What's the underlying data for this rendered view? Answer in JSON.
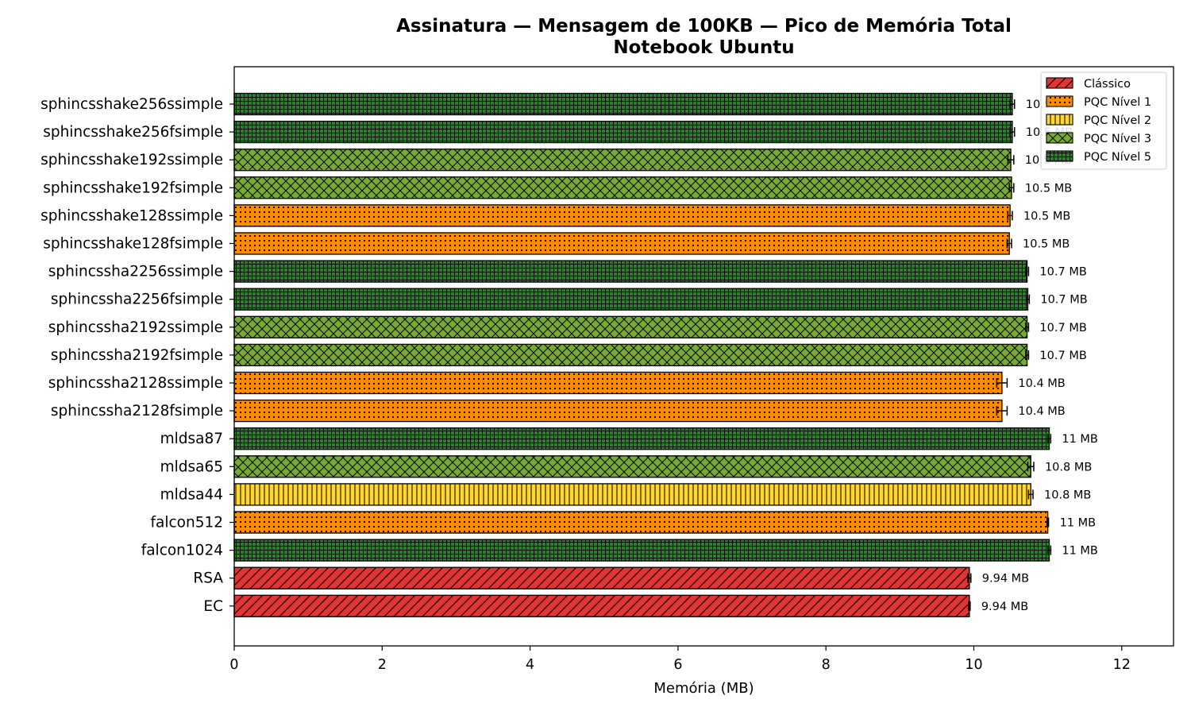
{
  "chart_data": {
    "type": "bar",
    "orientation": "horizontal",
    "title": "Assinatura — Mensagem de 100KB — Pico de Memória Total",
    "subtitle": "Notebook Ubuntu",
    "xlabel": "Memória (MB)",
    "ylabel": "",
    "xlim": [
      0,
      12.7
    ],
    "xticks": [
      0,
      2,
      4,
      6,
      8,
      10,
      12
    ],
    "grid": false,
    "legend_position": "top-right",
    "legend": [
      {
        "key": "classico",
        "label": "Clássico",
        "color": "#e03535",
        "hatch": "diagonal"
      },
      {
        "key": "pqc1",
        "label": "PQC Nível 1",
        "color": "#ff8c00",
        "hatch": "dots"
      },
      {
        "key": "pqc2",
        "label": "PQC Nível 2",
        "color": "#ffd633",
        "hatch": "vertical"
      },
      {
        "key": "pqc3",
        "label": "PQC Nível 3",
        "color": "#77aa33",
        "hatch": "cross"
      },
      {
        "key": "pqc5",
        "label": "PQC Nível 5",
        "color": "#2e7d2e",
        "hatch": "grid"
      }
    ],
    "bars": [
      {
        "name": "sphincsshake256ssimple",
        "value": 10.52,
        "err": 0.03,
        "label": "10.5 MB",
        "group": "pqc5"
      },
      {
        "name": "sphincsshake256fsimple",
        "value": 10.52,
        "err": 0.03,
        "label": "10.5 MB",
        "group": "pqc5"
      },
      {
        "name": "sphincsshake192ssimple",
        "value": 10.5,
        "err": 0.04,
        "label": "10.5 MB",
        "group": "pqc3"
      },
      {
        "name": "sphincsshake192fsimple",
        "value": 10.51,
        "err": 0.03,
        "label": "10.5 MB",
        "group": "pqc3"
      },
      {
        "name": "sphincsshake128ssimple",
        "value": 10.49,
        "err": 0.03,
        "label": "10.5 MB",
        "group": "pqc1"
      },
      {
        "name": "sphincsshake128fsimple",
        "value": 10.48,
        "err": 0.03,
        "label": "10.5 MB",
        "group": "pqc1"
      },
      {
        "name": "sphincssha2256ssimple",
        "value": 10.72,
        "err": 0.02,
        "label": "10.7 MB",
        "group": "pqc5"
      },
      {
        "name": "sphincssha2256fsimple",
        "value": 10.73,
        "err": 0.02,
        "label": "10.7 MB",
        "group": "pqc5"
      },
      {
        "name": "sphincssha2192ssimple",
        "value": 10.72,
        "err": 0.02,
        "label": "10.7 MB",
        "group": "pqc3"
      },
      {
        "name": "sphincssha2192fsimple",
        "value": 10.72,
        "err": 0.02,
        "label": "10.7 MB",
        "group": "pqc3"
      },
      {
        "name": "sphincssha2128ssimple",
        "value": 10.38,
        "err": 0.07,
        "label": "10.4 MB",
        "group": "pqc1"
      },
      {
        "name": "sphincssha2128fsimple",
        "value": 10.38,
        "err": 0.07,
        "label": "10.4 MB",
        "group": "pqc1"
      },
      {
        "name": "mldsa87",
        "value": 11.02,
        "err": 0.02,
        "label": "11 MB",
        "group": "pqc5"
      },
      {
        "name": "mldsa65",
        "value": 10.77,
        "err": 0.04,
        "label": "10.8 MB",
        "group": "pqc3"
      },
      {
        "name": "mldsa44",
        "value": 10.77,
        "err": 0.03,
        "label": "10.8 MB",
        "group": "pqc2"
      },
      {
        "name": "falcon512",
        "value": 11.0,
        "err": 0.01,
        "label": "11 MB",
        "group": "pqc1"
      },
      {
        "name": "falcon1024",
        "value": 11.02,
        "err": 0.02,
        "label": "11 MB",
        "group": "pqc5"
      },
      {
        "name": "RSA",
        "value": 9.94,
        "err": 0.02,
        "label": "9.94 MB",
        "group": "classico"
      },
      {
        "name": "EC",
        "value": 9.94,
        "err": 0.01,
        "label": "9.94 MB",
        "group": "classico"
      }
    ]
  }
}
